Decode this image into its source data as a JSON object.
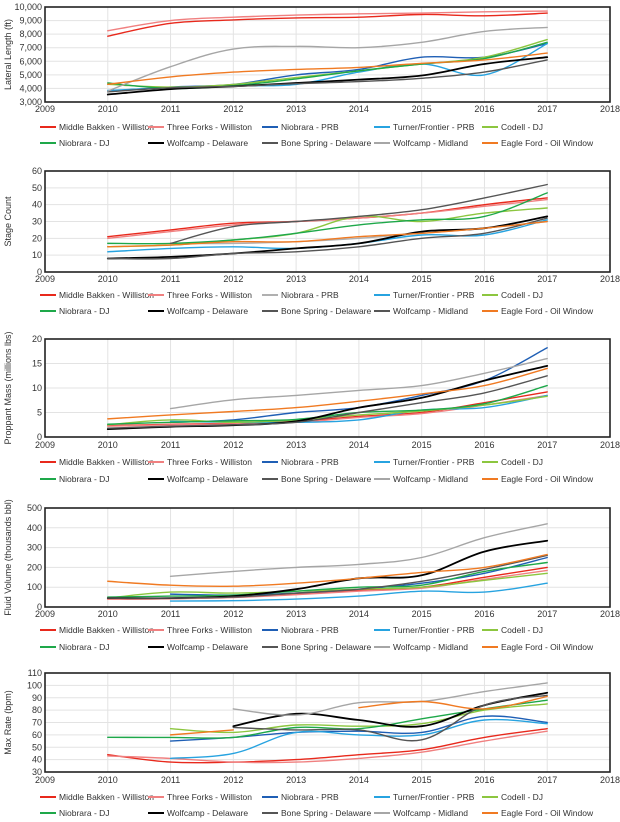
{
  "chart_data": [
    {
      "type": "line",
      "title": "",
      "xlabel": "",
      "ylabel": "Lateral Length (ft)",
      "xlim": [
        2009,
        2018
      ],
      "ylim": [
        3000,
        10000
      ],
      "xticks": [
        "2009",
        "2010",
        "2011",
        "2012",
        "2013",
        "2014",
        "2015",
        "2016",
        "2017",
        "2018"
      ],
      "yticks": [
        "3,000",
        "4,000",
        "5,000",
        "6,000",
        "7,000",
        "8,000",
        "9,000",
        "10,000"
      ],
      "ytick_values": [
        3000,
        4000,
        5000,
        6000,
        7000,
        8000,
        9000,
        10000
      ],
      "grid": true,
      "legend_position": "bottom",
      "x": [
        2010,
        2011,
        2012,
        2013,
        2014,
        2015,
        2016,
        2017
      ],
      "series": [
        {
          "name": "Middle Bakken - Williston",
          "color": "#e8291c",
          "values": [
            7850,
            8800,
            9050,
            9200,
            9250,
            9450,
            9350,
            9550
          ]
        },
        {
          "name": "Three Forks - Williston",
          "color": "#f08080",
          "values": [
            8250,
            9000,
            9250,
            9400,
            9500,
            9550,
            9650,
            9700
          ]
        },
        {
          "name": "Niobrara - PRB",
          "color": "#1f5fb5",
          "values": [
            3800,
            4100,
            4300,
            5000,
            5400,
            6300,
            6300,
            7300
          ]
        },
        {
          "name": "Turner/Frontier - PRB",
          "color": "#27a3e0",
          "values": [
            3850,
            4050,
            4200,
            4300,
            5200,
            5800,
            5000,
            7300
          ]
        },
        {
          "name": "Codell - DJ",
          "color": "#8cc63f",
          "values": [
            4300,
            4100,
            4300,
            4800,
            5300,
            5800,
            6300,
            7600
          ]
        },
        {
          "name": "Niobrara - DJ",
          "color": "#1ea84a",
          "values": [
            4400,
            4000,
            4200,
            4700,
            5300,
            5800,
            6200,
            7400
          ]
        },
        {
          "name": "Wolfcamp - Delaware",
          "color": "#000000",
          "values": [
            3550,
            3950,
            4150,
            4400,
            4650,
            4950,
            5800,
            6300
          ]
        },
        {
          "name": "Bone Spring - Delaware",
          "color": "#555555",
          "values": [
            3750,
            4050,
            4150,
            4350,
            4500,
            4750,
            5200,
            6100
          ]
        },
        {
          "name": "Wolfcamp - Midland",
          "color": "#a6a6a6",
          "values": [
            3800,
            5600,
            6900,
            7100,
            7000,
            7400,
            8200,
            8500
          ]
        },
        {
          "name": "Eagle Ford - Oil Window",
          "color": "#f07a22",
          "values": [
            4300,
            4850,
            5200,
            5400,
            5550,
            5850,
            6100,
            6600
          ]
        }
      ]
    },
    {
      "type": "line",
      "title": "",
      "xlabel": "",
      "ylabel": "Stage Count",
      "xlim": [
        2009,
        2018
      ],
      "ylim": [
        0,
        60
      ],
      "xticks": [
        "2009",
        "2010",
        "2011",
        "2012",
        "2013",
        "2014",
        "2015",
        "2016",
        "2017",
        "2018"
      ],
      "yticks": [
        "0",
        "10",
        "20",
        "30",
        "40",
        "50",
        "60"
      ],
      "ytick_values": [
        0,
        10,
        20,
        30,
        40,
        50,
        60
      ],
      "grid": true,
      "legend_position": "bottom",
      "x": [
        2010,
        2011,
        2012,
        2013,
        2014,
        2015,
        2016,
        2017
      ],
      "series": [
        {
          "name": "Middle Bakken - Williston",
          "color": "#e8291c",
          "values": [
            21,
            25,
            29,
            30,
            32,
            35,
            40,
            44
          ]
        },
        {
          "name": "Three Forks - Williston",
          "color": "#f08080",
          "values": [
            20,
            24,
            28,
            30,
            32,
            35,
            39,
            43
          ]
        },
        {
          "name": "Niobrara - PRB",
          "color": "#b0b0b0",
          "values": [
            null,
            17,
            17,
            18,
            20,
            23,
            26,
            30
          ]
        },
        {
          "name": "Turner/Frontier - PRB",
          "color": "#27a3e0",
          "values": [
            12,
            14,
            15,
            14,
            17,
            22,
            22,
            31
          ]
        },
        {
          "name": "Codell - DJ",
          "color": "#8cc63f",
          "values": [
            15,
            16,
            19,
            23,
            33,
            30,
            35,
            38
          ]
        },
        {
          "name": "Niobrara - DJ",
          "color": "#1ea84a",
          "values": [
            17,
            17,
            19,
            23,
            28,
            31,
            33,
            47
          ]
        },
        {
          "name": "Wolfcamp - Delaware",
          "color": "#000000",
          "values": [
            8,
            9,
            11,
            14,
            17,
            24,
            26,
            33
          ]
        },
        {
          "name": "Bone Spring - Delaware",
          "color": "#555555",
          "values": [
            8,
            8,
            11,
            12,
            15,
            20,
            23,
            32
          ]
        },
        {
          "name": "Wolfcamp - Midland",
          "color": "#555555",
          "values": [
            null,
            17,
            27,
            30,
            33,
            37,
            44,
            52
          ]
        },
        {
          "name": "Eagle Ford - Oil Window",
          "color": "#f07a22",
          "values": [
            15,
            16,
            18,
            18,
            21,
            23,
            26,
            30
          ]
        }
      ],
      "legend_colors": [
        "#e8291c",
        "#f08080",
        "#b0b0b0",
        "#27a3e0",
        "#8cc63f",
        "#1ea84a",
        "#000000",
        "#555555",
        "#555555",
        "#f07a22"
      ]
    },
    {
      "type": "line",
      "title": "",
      "xlabel": "",
      "ylabel": "Proppant Mass (millions lbs)",
      "xlim": [
        2009,
        2018
      ],
      "ylim": [
        0,
        20
      ],
      "xticks": [
        "2009",
        "2010",
        "2011",
        "2012",
        "2013",
        "2014",
        "2015",
        "2016",
        "2017",
        "2018"
      ],
      "yticks": [
        "0",
        "5",
        "10",
        "15",
        "20"
      ],
      "ytick_values": [
        0,
        5,
        10,
        15,
        20
      ],
      "grid": true,
      "legend_position": "bottom",
      "x": [
        2010,
        2011,
        2012,
        2013,
        2014,
        2015,
        2016,
        2017
      ],
      "series": [
        {
          "name": "Middle Bakken - Williston",
          "color": "#e8291c",
          "values": [
            2.3,
            2.6,
            2.8,
            3.2,
            4.2,
            5.0,
            7.0,
            9.2
          ]
        },
        {
          "name": "Three Forks - Williston",
          "color": "#f08080",
          "values": [
            2.2,
            2.5,
            2.7,
            3.0,
            4.0,
            4.8,
            6.5,
            8.5
          ]
        },
        {
          "name": "Niobrara - PRB",
          "color": "#1f5fb5",
          "values": [
            null,
            3.0,
            3.5,
            5.0,
            6.0,
            8.5,
            11.5,
            18.2
          ]
        },
        {
          "name": "Turner/Frontier - PRB",
          "color": "#27a3e0",
          "values": [
            null,
            3.2,
            3.0,
            3.0,
            3.5,
            5.5,
            6.0,
            8.5
          ]
        },
        {
          "name": "Codell - DJ",
          "color": "#8cc63f",
          "values": [
            2.5,
            3.5,
            3.0,
            3.5,
            4.5,
            5.3,
            6.5,
            8.3
          ]
        },
        {
          "name": "Niobrara - DJ",
          "color": "#1ea84a",
          "values": [
            2.6,
            3.0,
            3.3,
            3.6,
            5.0,
            5.5,
            6.8,
            10.5
          ]
        },
        {
          "name": "Wolfcamp - Delaware",
          "color": "#000000",
          "values": [
            1.6,
            2.1,
            2.4,
            3.2,
            6.0,
            8.0,
            11.5,
            14.5
          ]
        },
        {
          "name": "Bone Spring - Delaware",
          "color": "#555555",
          "values": [
            1.8,
            2.2,
            2.5,
            3.0,
            5.0,
            7.0,
            9.0,
            12.5
          ]
        },
        {
          "name": "Wolfcamp - Midland",
          "color": "#a6a6a6",
          "values": [
            null,
            5.8,
            7.6,
            8.5,
            9.5,
            10.5,
            13.0,
            16.0
          ]
        },
        {
          "name": "Eagle Ford - Oil Window",
          "color": "#f07a22",
          "values": [
            3.7,
            4.5,
            5.2,
            6.0,
            7.3,
            8.8,
            10.5,
            14.0
          ]
        }
      ]
    },
    {
      "type": "line",
      "title": "",
      "xlabel": "",
      "ylabel": "Fluid Volume (thousands bbl)",
      "xlim": [
        2009,
        2018
      ],
      "ylim": [
        0,
        500
      ],
      "xticks": [
        "2009",
        "2010",
        "2011",
        "2012",
        "2013",
        "2014",
        "2015",
        "2016",
        "2017",
        "2018"
      ],
      "yticks": [
        "0",
        "100",
        "200",
        "300",
        "400",
        "500"
      ],
      "ytick_values": [
        0,
        100,
        200,
        300,
        400,
        500
      ],
      "grid": true,
      "legend_position": "bottom",
      "x": [
        2010,
        2011,
        2012,
        2013,
        2014,
        2015,
        2016,
        2017
      ],
      "series": [
        {
          "name": "Middle Bakken - Williston",
          "color": "#e8291c",
          "values": [
            40,
            42,
            50,
            65,
            85,
            100,
            150,
            200
          ]
        },
        {
          "name": "Three Forks - Williston",
          "color": "#f08080",
          "values": [
            40,
            42,
            48,
            62,
            80,
            95,
            140,
            185
          ]
        },
        {
          "name": "Niobrara - PRB",
          "color": "#1f5fb5",
          "values": [
            null,
            65,
            60,
            70,
            90,
            120,
            170,
            250
          ]
        },
        {
          "name": "Turner/Frontier - PRB",
          "color": "#27a3e0",
          "values": [
            null,
            30,
            32,
            40,
            55,
            80,
            75,
            120
          ]
        },
        {
          "name": "Codell - DJ",
          "color": "#8cc63f",
          "values": [
            45,
            75,
            70,
            80,
            90,
            100,
            135,
            170
          ]
        },
        {
          "name": "Niobrara - DJ",
          "color": "#1ea84a",
          "values": [
            50,
            55,
            60,
            80,
            100,
            110,
            180,
            225
          ]
        },
        {
          "name": "Wolfcamp - Delaware",
          "color": "#000000",
          "values": [
            45,
            45,
            55,
            90,
            145,
            160,
            280,
            335
          ]
        },
        {
          "name": "Bone Spring - Delaware",
          "color": "#555555",
          "values": [
            45,
            45,
            50,
            70,
            90,
            130,
            190,
            260
          ]
        },
        {
          "name": "Wolfcamp - Midland",
          "color": "#a6a6a6",
          "values": [
            null,
            155,
            180,
            200,
            215,
            250,
            350,
            420
          ]
        },
        {
          "name": "Eagle Ford - Oil Window",
          "color": "#f07a22",
          "values": [
            130,
            110,
            105,
            120,
            145,
            175,
            200,
            265
          ]
        }
      ]
    },
    {
      "type": "line",
      "title": "",
      "xlabel": "",
      "ylabel": "Max Rate (bpm)",
      "xlim": [
        2009,
        2018
      ],
      "ylim": [
        30,
        110
      ],
      "xticks": [
        "2009",
        "2010",
        "2011",
        "2012",
        "2013",
        "2014",
        "2015",
        "2016",
        "2017",
        "2018"
      ],
      "yticks": [
        "30",
        "40",
        "50",
        "60",
        "70",
        "80",
        "90",
        "100",
        "110"
      ],
      "ytick_values": [
        30,
        40,
        50,
        60,
        70,
        80,
        90,
        100,
        110
      ],
      "grid": true,
      "legend_position": "bottom",
      "x": [
        2010,
        2011,
        2012,
        2013,
        2014,
        2015,
        2016,
        2017
      ],
      "series": [
        {
          "name": "Middle Bakken - Williston",
          "color": "#e8291c",
          "values": [
            44,
            38,
            38,
            40,
            44,
            48,
            58,
            65
          ]
        },
        {
          "name": "Three Forks - Williston",
          "color": "#f08080",
          "values": [
            43,
            41,
            38,
            38,
            41,
            46,
            55,
            63
          ]
        },
        {
          "name": "Niobrara - PRB",
          "color": "#1f5fb5",
          "values": [
            null,
            55,
            58,
            62,
            63,
            62,
            75,
            70
          ]
        },
        {
          "name": "Turner/Frontier - PRB",
          "color": "#27a3e0",
          "values": [
            null,
            41,
            45,
            62,
            60,
            60,
            72,
            69
          ]
        },
        {
          "name": "Codell - DJ",
          "color": "#8cc63f",
          "values": [
            null,
            65,
            62,
            68,
            67,
            69,
            80,
            85
          ]
        },
        {
          "name": "Niobrara - DJ",
          "color": "#1ea84a",
          "values": [
            58,
            58,
            58,
            66,
            65,
            73,
            81,
            88
          ]
        },
        {
          "name": "Wolfcamp - Delaware",
          "color": "#000000",
          "values": [
            null,
            null,
            67,
            77,
            72,
            67,
            84,
            94
          ]
        },
        {
          "name": "Bone Spring - Delaware",
          "color": "#555555",
          "values": [
            null,
            null,
            66,
            64,
            64,
            56,
            84,
            92
          ]
        },
        {
          "name": "Wolfcamp - Midland",
          "color": "#a6a6a6",
          "values": [
            null,
            null,
            81,
            76,
            86,
            87,
            95,
            102
          ]
        },
        {
          "name": "Eagle Ford - Oil Window",
          "color": "#f07a22",
          "values": [
            null,
            60,
            64,
            null,
            82,
            87,
            81,
            91
          ]
        }
      ]
    }
  ]
}
